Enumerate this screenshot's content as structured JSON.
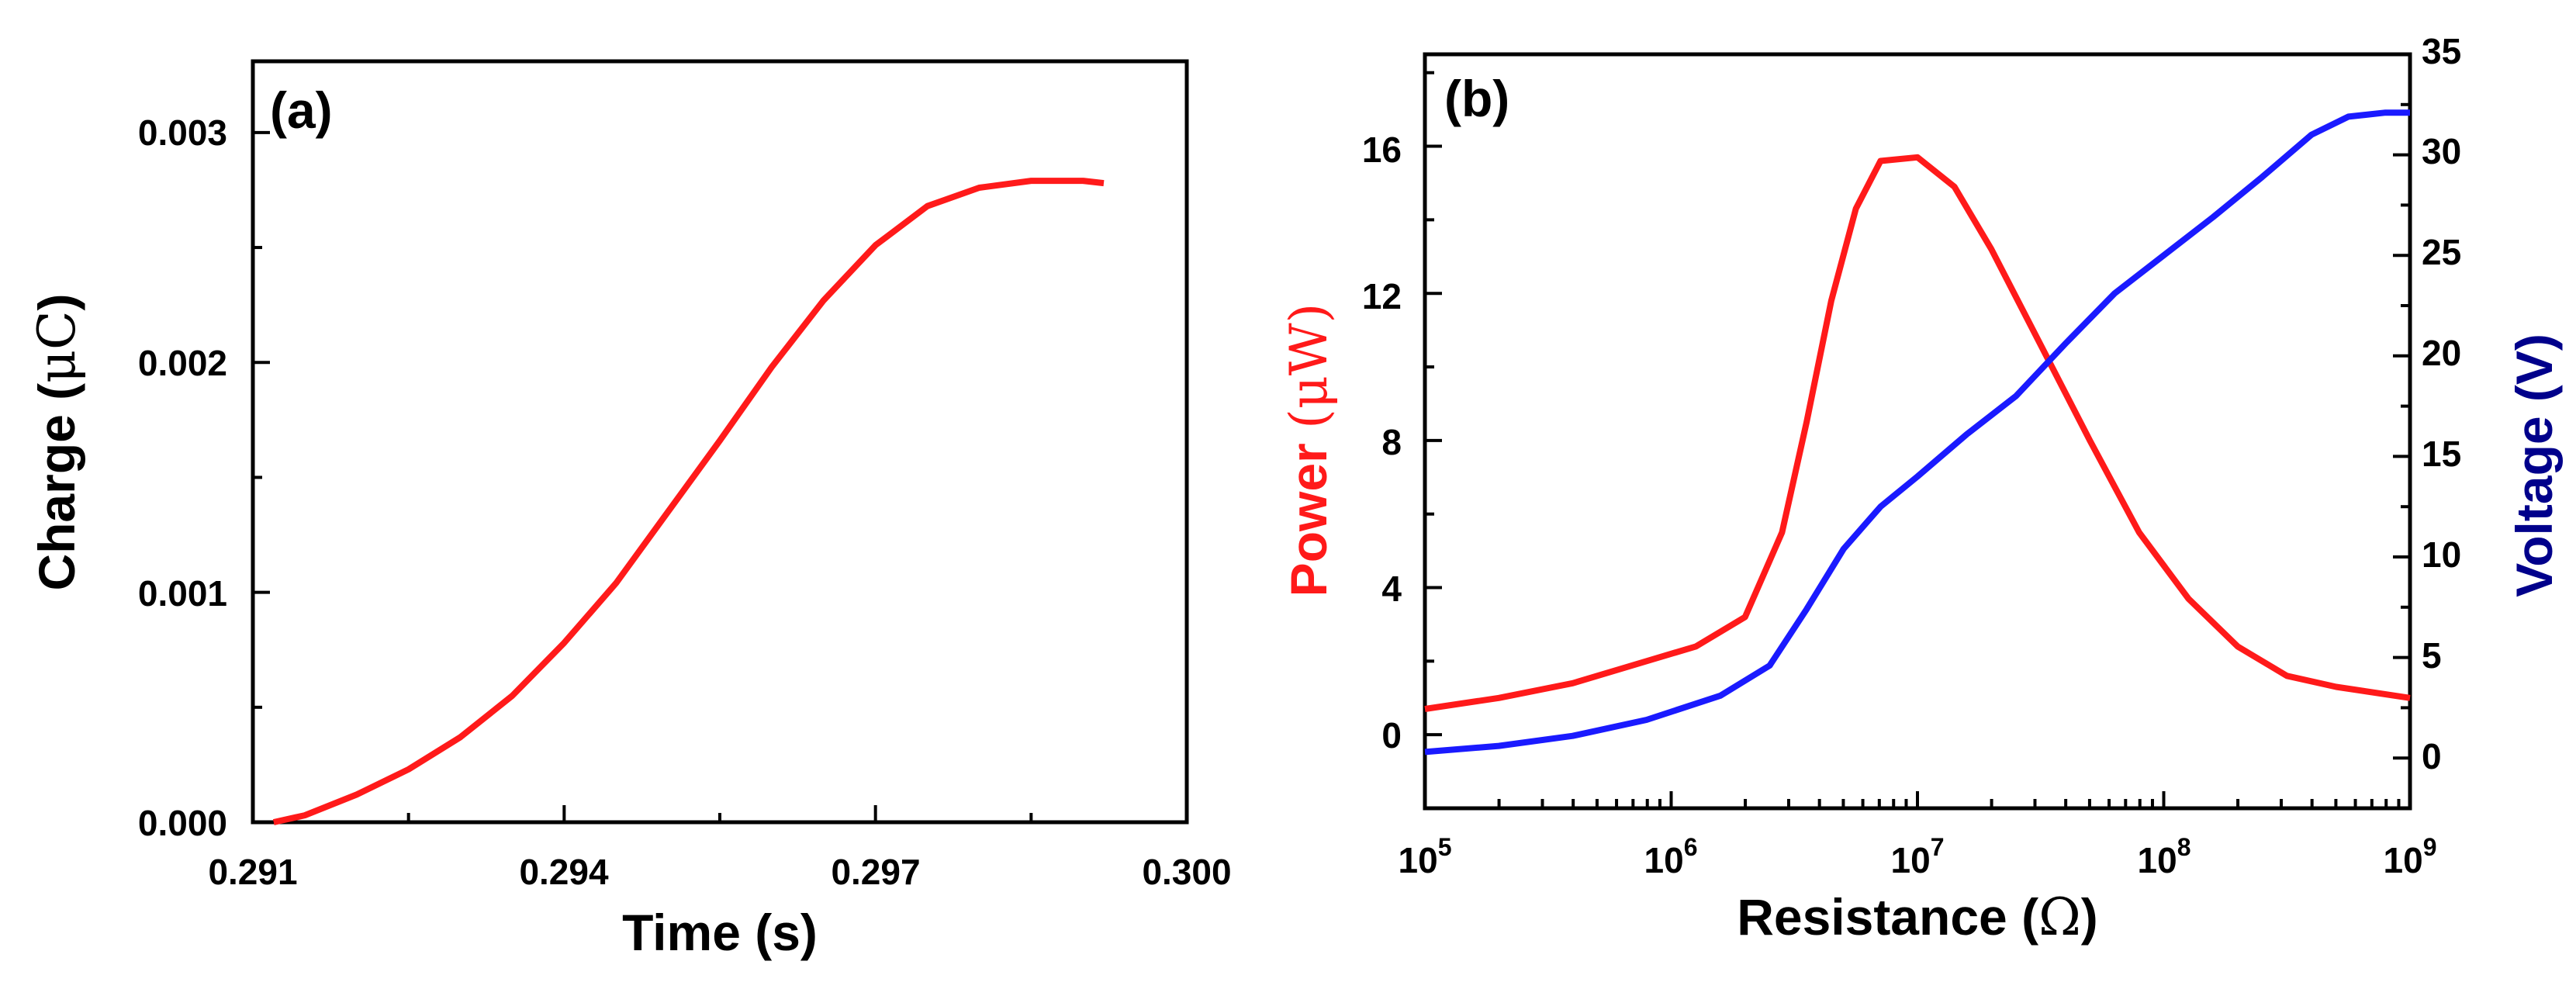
{
  "colors": {
    "red": "#ff1a1a",
    "blue": "#1a1aff",
    "navy": "#00008b",
    "axis": "#000000"
  },
  "chart_data": [
    {
      "panel": "(a)",
      "type": "line",
      "xlabel": "Time (s)",
      "ylabel": {
        "prefix": "Charge (",
        "unit": "μC",
        "suffix": ")"
      },
      "xlim": [
        0.291,
        0.3
      ],
      "ylim": [
        0.0,
        0.00331
      ],
      "xticks": [
        0.291,
        0.294,
        0.297,
        0.3
      ],
      "xtick_labels": [
        "0.291",
        "0.294",
        "0.297",
        "0.300"
      ],
      "yticks": [
        0.0,
        0.001,
        0.002,
        0.003
      ],
      "ytick_labels": [
        "0.000",
        "0.001",
        "0.002",
        "0.003"
      ],
      "series": [
        {
          "color": "#ff1a1a",
          "x": [
            0.2912,
            0.2915,
            0.292,
            0.2925,
            0.293,
            0.2935,
            0.294,
            0.2945,
            0.295,
            0.2955,
            0.296,
            0.2965,
            0.297,
            0.2975,
            0.298,
            0.2985,
            0.299,
            0.2992
          ],
          "y": [
            0.0,
            3e-05,
            0.00012,
            0.00023,
            0.00037,
            0.00055,
            0.00078,
            0.00104,
            0.00135,
            0.00166,
            0.00198,
            0.00227,
            0.00251,
            0.00268,
            0.00276,
            0.00279,
            0.00279,
            0.00278
          ]
        }
      ]
    },
    {
      "panel": "(b)",
      "type": "line",
      "xlabel": {
        "prefix": "Resistance (",
        "unit": "Ω",
        "suffix": ")"
      },
      "ylabel_left": {
        "prefix": "Power ",
        "unit": "(μW)"
      },
      "ylabel_right": "Voltage (V)",
      "x_scale": "log",
      "xlim": [
        100000.0,
        1000000000.0
      ],
      "xticks": [
        100000.0,
        1000000.0,
        10000000.0,
        100000000.0,
        1000000000.0
      ],
      "xtick_exponents": [
        "5",
        "6",
        "7",
        "8",
        "9"
      ],
      "xtick_base": "10",
      "ylim_left": [
        -2,
        18.5
      ],
      "yticks_left": [
        0,
        4,
        8,
        12,
        16
      ],
      "ytick_labels_left": [
        "0",
        "4",
        "8",
        "12",
        "16"
      ],
      "ylim_right": [
        -2.5,
        35
      ],
      "yticks_right": [
        0,
        5,
        10,
        15,
        20,
        25,
        30,
        35
      ],
      "ytick_labels_right": [
        "0",
        "5",
        "10",
        "15",
        "20",
        "25",
        "30",
        "35"
      ],
      "series": [
        {
          "axis": "left",
          "color": "#ff1a1a",
          "log10_x": [
            5.0,
            5.3,
            5.6,
            5.9,
            6.1,
            6.3,
            6.45,
            6.55,
            6.65,
            6.75,
            6.85,
            7.0,
            7.15,
            7.3,
            7.5,
            7.7,
            7.9,
            8.1,
            8.3,
            8.5,
            8.7,
            9.0
          ],
          "y": [
            0.7,
            1.0,
            1.4,
            2.0,
            2.4,
            3.2,
            5.5,
            8.5,
            11.8,
            14.3,
            15.6,
            15.7,
            14.9,
            13.2,
            10.6,
            8.0,
            5.5,
            3.7,
            2.4,
            1.6,
            1.3,
            1.0
          ]
        },
        {
          "axis": "right",
          "color": "#1a1aff",
          "log10_x": [
            5.0,
            5.3,
            5.6,
            5.9,
            6.2,
            6.4,
            6.55,
            6.7,
            6.85,
            7.0,
            7.2,
            7.4,
            7.6,
            7.8,
            8.0,
            8.2,
            8.4,
            8.6,
            8.75,
            8.9,
            9.0
          ],
          "y": [
            0.3,
            0.6,
            1.1,
            1.9,
            3.1,
            4.6,
            7.4,
            10.4,
            12.5,
            14.0,
            16.1,
            18.0,
            20.6,
            23.1,
            25.0,
            26.9,
            28.9,
            31.0,
            31.9,
            32.1,
            32.1
          ]
        }
      ]
    }
  ]
}
